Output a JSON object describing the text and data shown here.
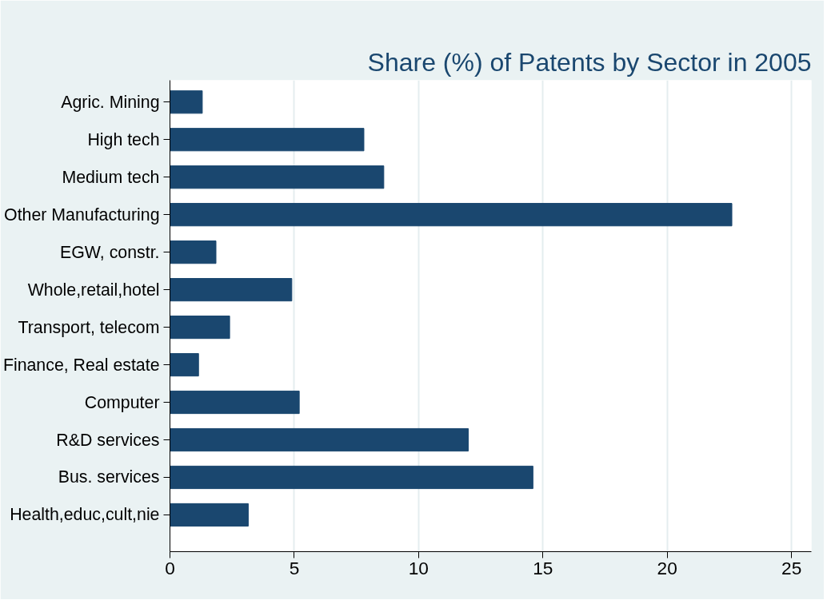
{
  "chart_data": {
    "type": "bar",
    "orientation": "horizontal",
    "title": "Share (%) of Patents by Sector in 2005",
    "categories": [
      "Agric. Mining",
      "High tech",
      "Medium tech",
      "Other Manufacturing",
      "EGW, constr.",
      "Whole,retail,hotel",
      "Transport, telecom",
      "Finance, Real estate",
      "Computer",
      "R&D services",
      "Bus. services",
      "Health,educ,cult,nie"
    ],
    "values": [
      1.3,
      7.8,
      8.6,
      22.6,
      1.85,
      4.9,
      2.4,
      1.15,
      5.2,
      12.0,
      14.6,
      3.15
    ],
    "color": "#1a476f",
    "xlim": [
      0,
      25.8
    ],
    "xticks": [
      0,
      5,
      10,
      15,
      20,
      25
    ],
    "grid": "x"
  }
}
